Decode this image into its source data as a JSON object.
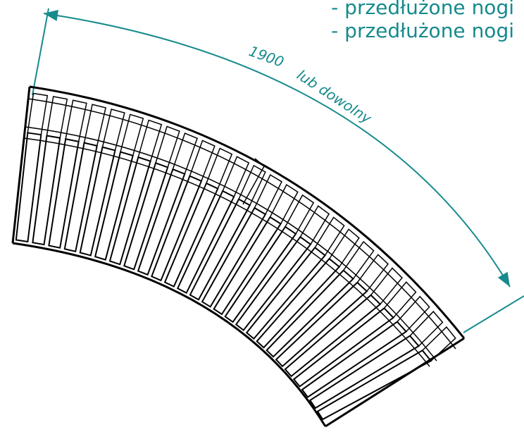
{
  "legend": {
    "line1": "- przedłużone nogi",
    "line2": "- przedłużone nogi"
  },
  "dimension": {
    "value": "1900",
    "note": "lub dowolny"
  },
  "colors": {
    "dimension": "#168a8c",
    "drawing": "#000000"
  }
}
